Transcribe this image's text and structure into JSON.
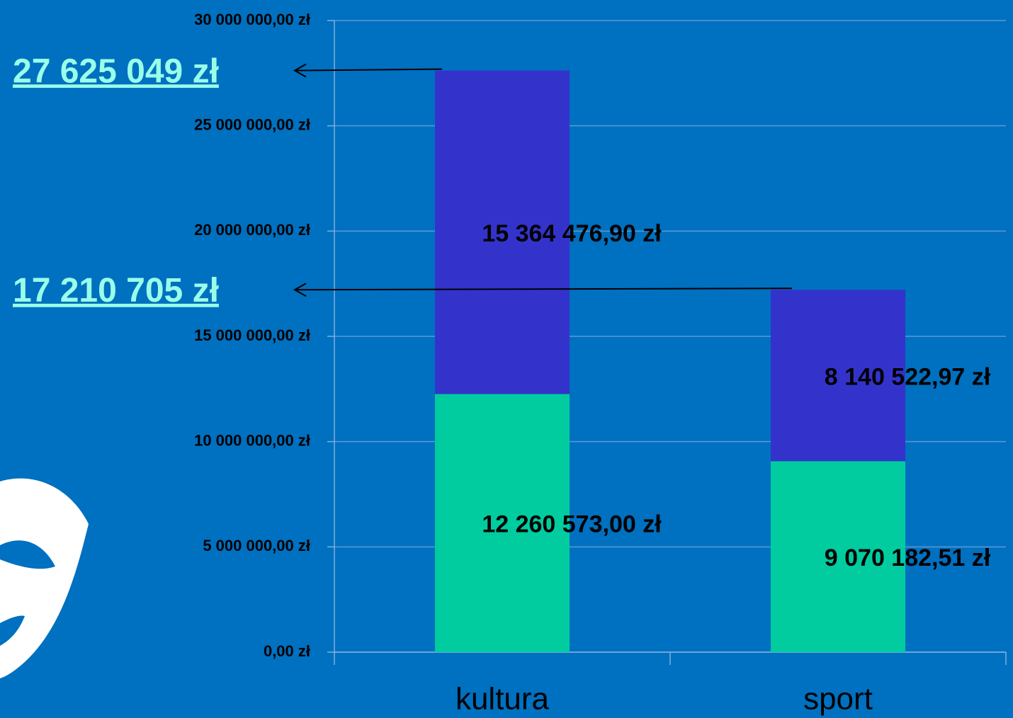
{
  "chart_data": {
    "type": "stacked_bar",
    "categories": [
      "kultura",
      "sport"
    ],
    "series": [
      {
        "color": "#00cc9f",
        "values": [
          12260573.0,
          9070182.51
        ],
        "value_labels": [
          "12 260 573,00 zł",
          "9 070 182,51 zł"
        ]
      },
      {
        "color": "#3333cc",
        "values": [
          15364476.9,
          8140522.97
        ],
        "value_labels": [
          "15 364 476,90 zł",
          "8 140 522,97 zł"
        ]
      }
    ],
    "annotations": [
      {
        "text": "27 625 049 zł",
        "value": 27625049
      },
      {
        "text": "17 210 705 zł",
        "value": 17210705
      }
    ],
    "ylim": [
      0,
      30000000
    ],
    "yticks": [
      {
        "value": 0,
        "label": "0,00 zł"
      },
      {
        "value": 5000000,
        "label": "5 000 000,00 zł"
      },
      {
        "value": 10000000,
        "label": "10 000 000,00 zł"
      },
      {
        "value": 15000000,
        "label": "15 000 000,00 zł"
      },
      {
        "value": 20000000,
        "label": "20 000 000,00 zł"
      },
      {
        "value": 25000000,
        "label": "25 000 000,00 zł"
      },
      {
        "value": 30000000,
        "label": "30 000 000,00 zł"
      }
    ],
    "grid": true
  }
}
